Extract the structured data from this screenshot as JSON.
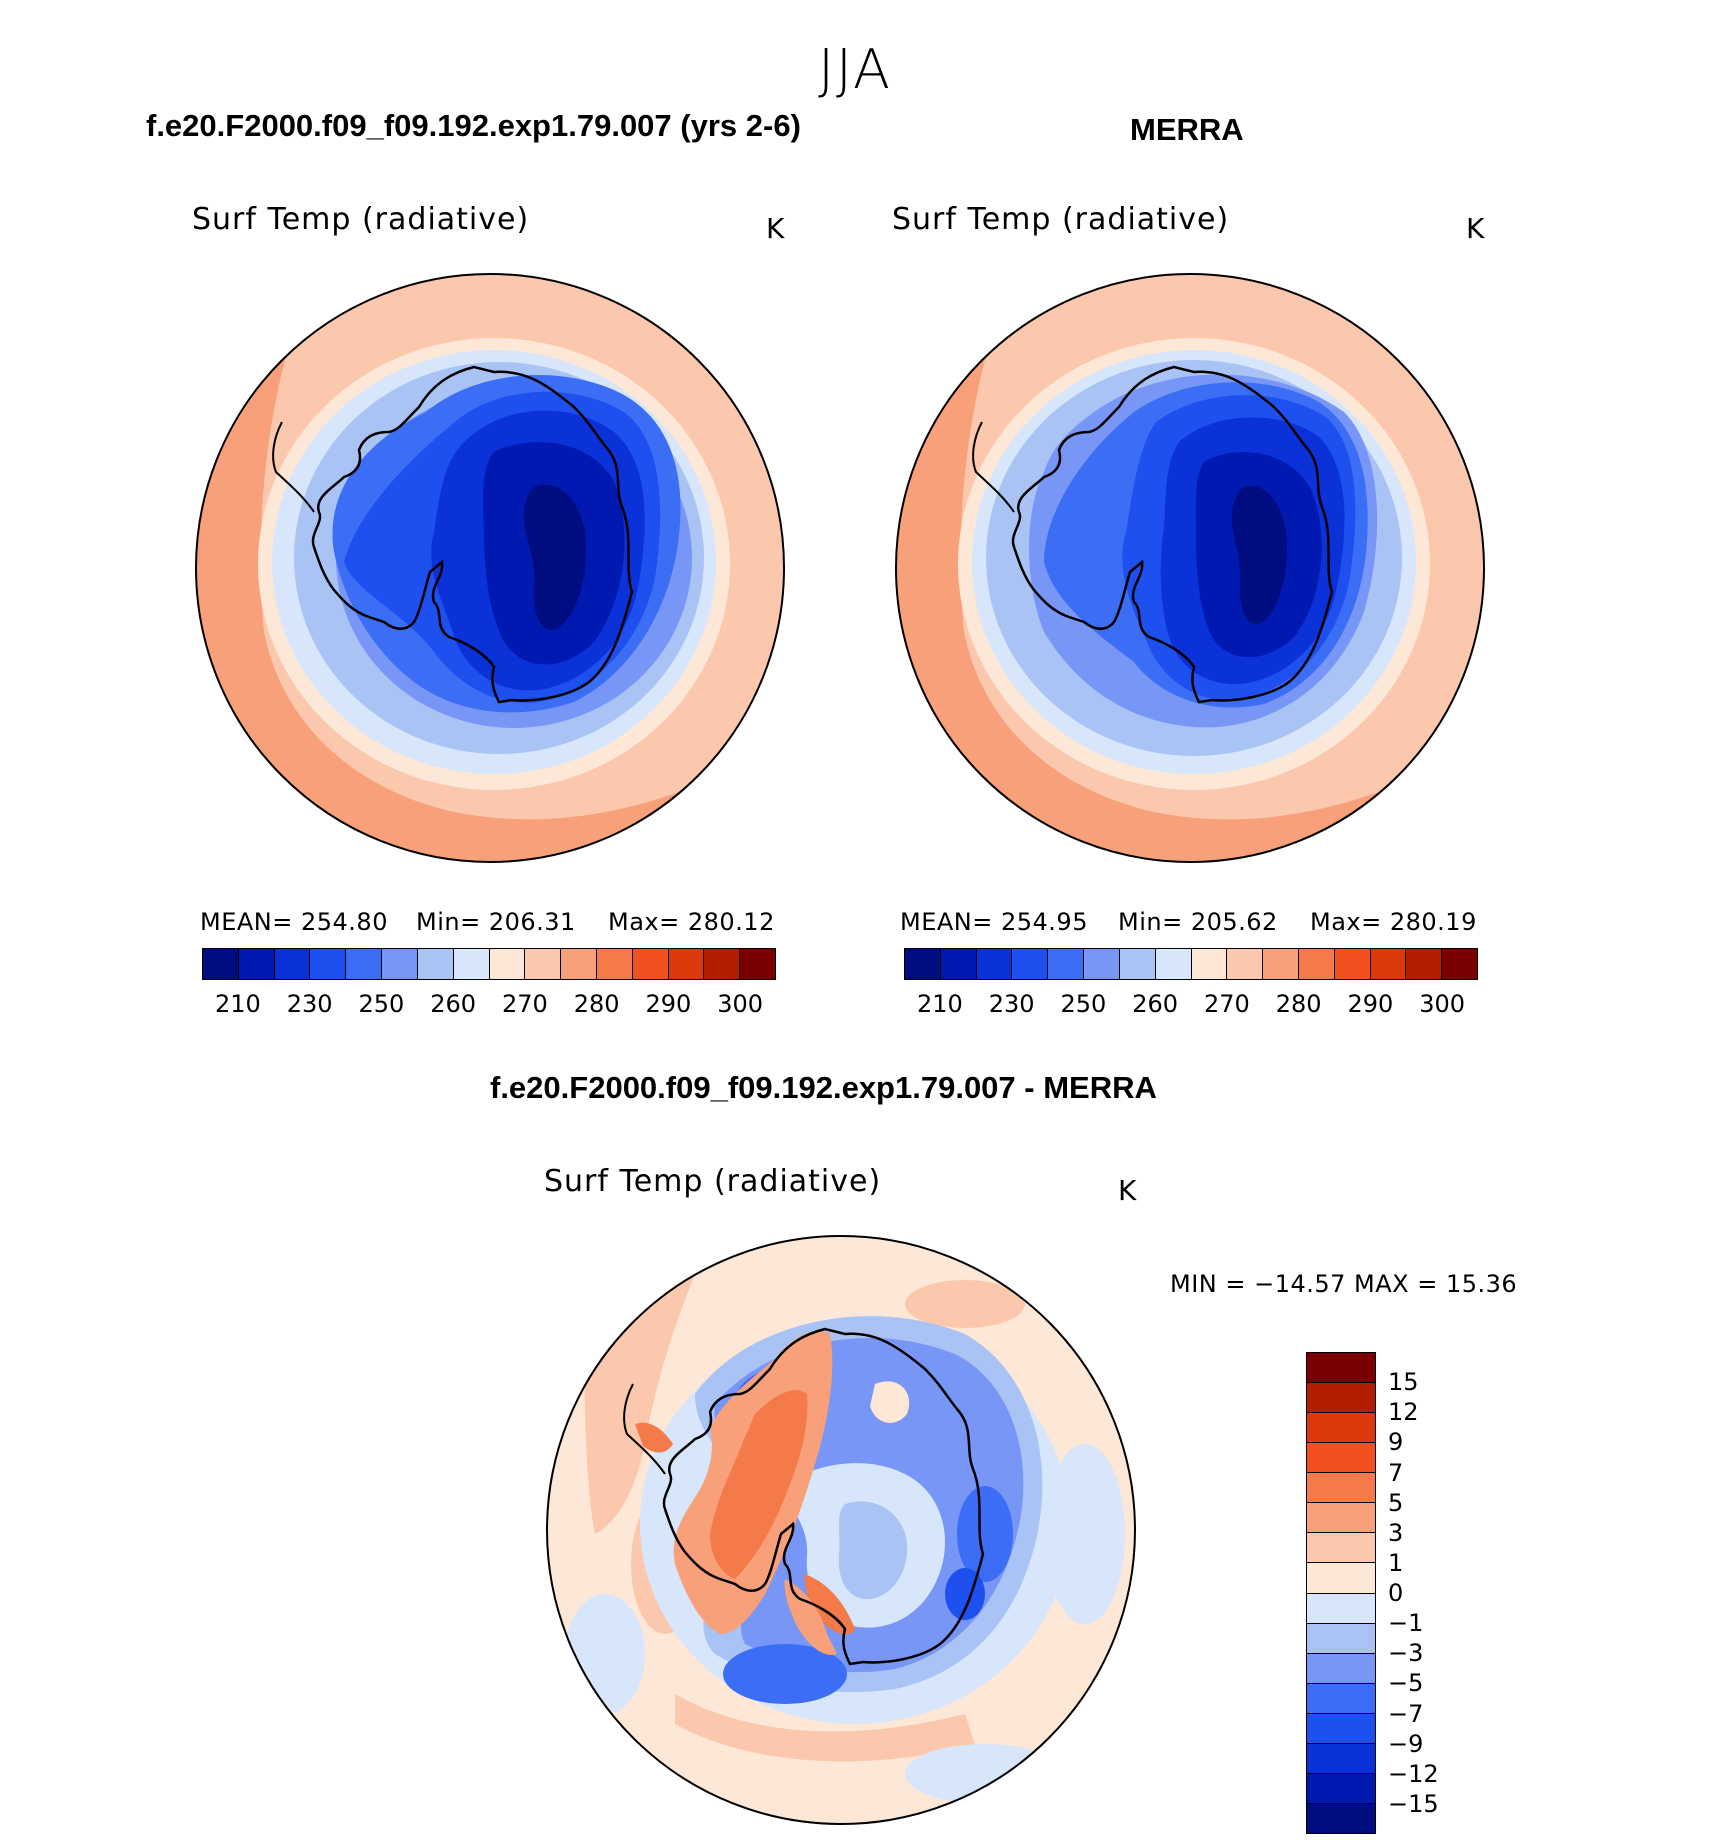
{
  "figure": {
    "season": "JJA"
  },
  "panels": [
    {
      "title": "f.e20.F2000.f09_f09.192.exp1.79.007 (yrs 2-6)",
      "variable": "Surf Temp (radiative)",
      "units": "K",
      "stats": {
        "mean": "MEAN= 254.80",
        "min": "Min= 206.31",
        "max": "Max= 280.12"
      }
    },
    {
      "title": "MERRA",
      "variable": "Surf Temp (radiative)",
      "units": "K",
      "stats": {
        "mean": "MEAN= 254.95",
        "min": "Min= 205.62",
        "max": "Max= 280.19"
      }
    },
    {
      "title": "f.e20.F2000.f09_f09.192.exp1.79.007 - MERRA",
      "variable": "Surf Temp (radiative)",
      "units": "K",
      "stats": {
        "minmax": "MIN = −14.57 MAX =   15.36"
      }
    }
  ],
  "abs_colorbar": {
    "colors": [
      "#000d80",
      "#0019b0",
      "#0a32d8",
      "#1e50f0",
      "#3c6ef5",
      "#7896f5",
      "#aac3f5",
      "#d7e6fa",
      "#fde8d7",
      "#fbc8ad",
      "#f8a07a",
      "#f47a4a",
      "#f2501e",
      "#dc3a0a",
      "#b41e00",
      "#780000"
    ],
    "labels": [
      "210",
      "230",
      "250",
      "260",
      "270",
      "280",
      "290",
      "300"
    ]
  },
  "diff_colorbar": {
    "colors": [
      "#780000",
      "#b41e00",
      "#dc3a0a",
      "#f2501e",
      "#f47a4a",
      "#f8a07a",
      "#fbc8ad",
      "#fde8d7",
      "#d7e6fa",
      "#aac3f5",
      "#7896f5",
      "#3c6ef5",
      "#1e50f0",
      "#0a32d8",
      "#0019b0",
      "#000d80"
    ],
    "labels": [
      "15",
      "12",
      "9",
      "7",
      "5",
      "3",
      "1",
      "0",
      "−1",
      "−3",
      "−5",
      "−7",
      "−9",
      "−12",
      "−15"
    ]
  },
  "chart_data": {
    "type": "map",
    "projection": "south polar stereographic",
    "region": "Antarctica / Southern Ocean",
    "maps": [
      {
        "name": "f.e20.F2000.f09_f09.192.exp1.79.007 (yrs 2-6)",
        "mean": 254.8,
        "min": 206.31,
        "max": 280.12,
        "levels": [
          210,
          220,
          230,
          240,
          250,
          255,
          260,
          265,
          270,
          275,
          280,
          285,
          290,
          295,
          300
        ]
      },
      {
        "name": "MERRA",
        "mean": 254.95,
        "min": 205.62,
        "max": 280.19,
        "levels": [
          210,
          220,
          230,
          240,
          250,
          255,
          260,
          265,
          270,
          275,
          280,
          285,
          290,
          295,
          300
        ]
      },
      {
        "name": "f.e20.F2000.f09_f09.192.exp1.79.007 - MERRA",
        "min": -14.57,
        "max": 15.36,
        "levels": [
          -15,
          -12,
          -9,
          -7,
          -5,
          -3,
          -1,
          0,
          1,
          3,
          5,
          7,
          9,
          12,
          15
        ]
      }
    ]
  }
}
